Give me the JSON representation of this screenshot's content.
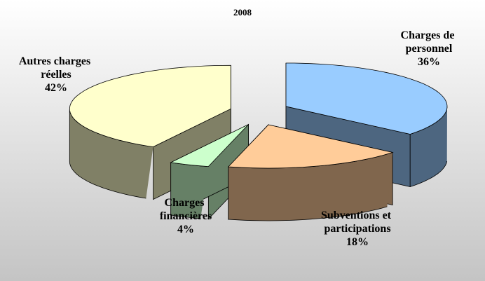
{
  "chart_data": {
    "type": "pie",
    "title": "2008",
    "categories": [
      "Charges de personnel",
      "Subventions et participations",
      "Charges financières",
      "Autres charges réelles"
    ],
    "values": [
      36,
      18,
      4,
      42
    ],
    "value_labels": [
      "36%",
      "18%",
      "4%",
      "42%"
    ],
    "colors": [
      "#99ccff",
      "#ffcc99",
      "#ccffcc",
      "#ffffcc"
    ]
  }
}
